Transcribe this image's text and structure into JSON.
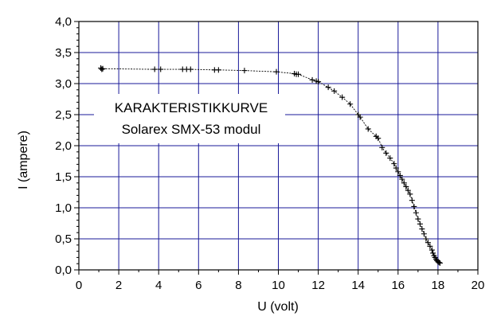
{
  "chart_data": {
    "type": "scatter",
    "xlabel": "U (volt)",
    "ylabel": "I (ampere)",
    "xlim": [
      0,
      20
    ],
    "ylim": [
      0,
      4.0
    ],
    "xticks": [
      0,
      2,
      4,
      6,
      8,
      10,
      12,
      14,
      16,
      18,
      20
    ],
    "yticks": [
      0.0,
      0.5,
      1.0,
      1.5,
      2.0,
      2.5,
      3.0,
      3.5,
      4.0
    ],
    "xtick_labels": [
      "0",
      "2",
      "4",
      "6",
      "8",
      "10",
      "12",
      "14",
      "16",
      "18",
      "20"
    ],
    "ytick_labels": [
      "0,0",
      "0,5",
      "1,0",
      "1,5",
      "2,0",
      "2,5",
      "3,0",
      "3,5",
      "4,0"
    ],
    "grid": true,
    "annotation": {
      "line1": "KARAKTERISTIKKURVE",
      "line2": "Solarex SMX-53 modul"
    },
    "colors": {
      "grid": "#1a1a99",
      "data": "#000000",
      "background": "#ffffff"
    },
    "marker": "plus",
    "series": [
      {
        "values": [
          [
            1.1,
            3.25
          ],
          [
            1.15,
            3.23
          ],
          [
            1.2,
            3.24
          ],
          [
            3.8,
            3.23
          ],
          [
            4.1,
            3.23
          ],
          [
            5.2,
            3.23
          ],
          [
            5.4,
            3.23
          ],
          [
            5.6,
            3.23
          ],
          [
            6.8,
            3.22
          ],
          [
            7.0,
            3.22
          ],
          [
            8.3,
            3.21
          ],
          [
            9.9,
            3.19
          ],
          [
            10.8,
            3.16
          ],
          [
            10.9,
            3.15
          ],
          [
            11.0,
            3.15
          ],
          [
            11.7,
            3.06
          ],
          [
            11.9,
            3.04
          ],
          [
            12.0,
            3.03
          ],
          [
            12.5,
            2.94
          ],
          [
            12.8,
            2.88
          ],
          [
            13.2,
            2.78
          ],
          [
            13.6,
            2.67
          ],
          [
            14.0,
            2.5
          ],
          [
            14.1,
            2.46
          ],
          [
            14.5,
            2.27
          ],
          [
            14.9,
            2.15
          ],
          [
            15.0,
            2.12
          ],
          [
            15.2,
            1.97
          ],
          [
            15.4,
            1.88
          ],
          [
            15.6,
            1.8
          ],
          [
            15.8,
            1.71
          ],
          [
            15.9,
            1.64
          ],
          [
            16.0,
            1.58
          ],
          [
            16.1,
            1.52
          ],
          [
            16.2,
            1.46
          ],
          [
            16.3,
            1.4
          ],
          [
            16.4,
            1.34
          ],
          [
            16.5,
            1.28
          ],
          [
            16.6,
            1.22
          ],
          [
            16.7,
            1.12
          ],
          [
            16.8,
            1.02
          ],
          [
            16.9,
            0.92
          ],
          [
            17.0,
            0.82
          ],
          [
            17.1,
            0.74
          ],
          [
            17.2,
            0.66
          ],
          [
            17.3,
            0.58
          ],
          [
            17.4,
            0.5
          ],
          [
            17.5,
            0.44
          ],
          [
            17.6,
            0.38
          ],
          [
            17.7,
            0.32
          ],
          [
            17.75,
            0.27
          ],
          [
            17.8,
            0.23
          ],
          [
            17.85,
            0.2
          ],
          [
            17.9,
            0.17
          ],
          [
            17.95,
            0.15
          ],
          [
            18.0,
            0.13
          ],
          [
            18.05,
            0.12
          ],
          [
            18.1,
            0.11
          ]
        ]
      }
    ]
  }
}
